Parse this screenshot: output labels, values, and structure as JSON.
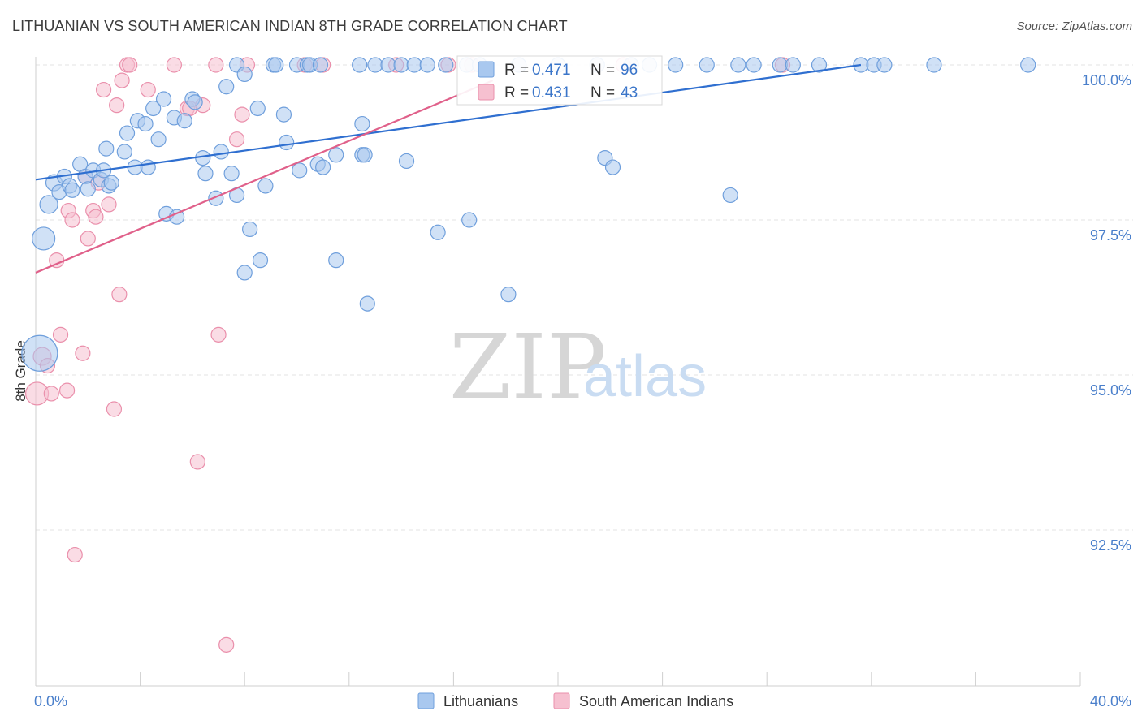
{
  "title": "LITHUANIAN VS SOUTH AMERICAN INDIAN 8TH GRADE CORRELATION CHART",
  "source": "Source: ZipAtlas.com",
  "watermark": {
    "zip": "ZIP",
    "atlas": "atlas"
  },
  "colors": {
    "blue_fill": "#a9c8ef",
    "blue_stroke": "#6f9fdc",
    "blue_line": "#2f6fd0",
    "pink_fill": "#f6c0d0",
    "pink_stroke": "#ea8fab",
    "pink_line": "#e0608a",
    "grid": "#e3e3e3",
    "tick_text": "#4a7fcb"
  },
  "legend_top": [
    {
      "r_label": "R =",
      "r_value": "0.471",
      "n_label": "N =",
      "n_value": "96",
      "series": "Lithuanians"
    },
    {
      "r_label": "R =",
      "r_value": "0.431",
      "n_label": "N =",
      "n_value": "43",
      "series": "South American Indians"
    }
  ],
  "chart_data": {
    "type": "scatter",
    "title": "LITHUANIAN VS SOUTH AMERICAN INDIAN 8TH GRADE CORRELATION CHART",
    "xlabel": "",
    "ylabel": "8th Grade",
    "xlim": [
      0,
      40
    ],
    "ylim": [
      90.2,
      100.45
    ],
    "x_tick_labels": [
      {
        "value": 0,
        "label": "0.0%"
      },
      {
        "value": 40,
        "label": "40.0%"
      }
    ],
    "x_minor_ticks": [
      4,
      8,
      12,
      16,
      20,
      24,
      28,
      32,
      36
    ],
    "y_ticks": [
      {
        "value": 100,
        "label": "100.0%"
      },
      {
        "value": 97.5,
        "label": "97.5%"
      },
      {
        "value": 95,
        "label": "95.0%"
      },
      {
        "value": 92.5,
        "label": "92.5%"
      }
    ],
    "grid": true,
    "legend_position": "bottom-center",
    "series": [
      {
        "name": "Lithuanians",
        "color": "#6f9fdc",
        "trend": {
          "x": [
            0,
            31.6
          ],
          "y": [
            98.15,
            100.0
          ]
        },
        "points": [
          [
            0.15,
            95.35,
            22
          ],
          [
            0.3,
            97.2,
            14
          ],
          [
            0.5,
            97.75,
            11
          ],
          [
            0.7,
            98.1,
            10
          ],
          [
            0.9,
            97.95,
            9
          ],
          [
            1.1,
            98.2,
            9
          ],
          [
            1.3,
            98.05,
            9
          ],
          [
            1.4,
            97.98,
            9
          ],
          [
            1.7,
            98.4,
            9
          ],
          [
            1.9,
            98.2,
            9
          ],
          [
            2.0,
            98.0,
            9
          ],
          [
            2.2,
            98.3,
            9
          ],
          [
            2.5,
            98.15,
            9
          ],
          [
            2.6,
            98.3,
            9
          ],
          [
            2.7,
            98.65,
            9
          ],
          [
            2.8,
            98.05,
            9
          ],
          [
            2.9,
            98.1,
            9
          ],
          [
            3.4,
            98.6,
            9
          ],
          [
            3.5,
            98.9,
            9
          ],
          [
            3.8,
            98.35,
            9
          ],
          [
            3.9,
            99.1,
            9
          ],
          [
            4.2,
            99.05,
            9
          ],
          [
            4.3,
            98.35,
            9
          ],
          [
            4.5,
            99.3,
            9
          ],
          [
            4.7,
            98.8,
            9
          ],
          [
            4.9,
            99.45,
            9
          ],
          [
            5.0,
            97.6,
            9
          ],
          [
            5.3,
            99.15,
            9
          ],
          [
            5.4,
            97.55,
            9
          ],
          [
            5.7,
            99.1,
            9
          ],
          [
            6.0,
            99.45,
            9
          ],
          [
            6.1,
            99.4,
            9
          ],
          [
            6.4,
            98.5,
            9
          ],
          [
            6.5,
            98.25,
            9
          ],
          [
            6.9,
            97.85,
            9
          ],
          [
            7.1,
            98.6,
            9
          ],
          [
            7.3,
            99.65,
            9
          ],
          [
            7.5,
            98.25,
            9
          ],
          [
            7.7,
            97.9,
            9
          ],
          [
            7.7,
            100.0,
            9
          ],
          [
            8.0,
            99.85,
            9
          ],
          [
            8.0,
            96.65,
            9
          ],
          [
            8.2,
            97.35,
            9
          ],
          [
            8.5,
            99.3,
            9
          ],
          [
            8.6,
            96.85,
            9
          ],
          [
            8.8,
            98.05,
            9
          ],
          [
            9.1,
            100.0,
            9
          ],
          [
            9.2,
            100.0,
            9
          ],
          [
            9.5,
            99.2,
            9
          ],
          [
            9.6,
            98.75,
            9
          ],
          [
            10.0,
            100.0,
            9
          ],
          [
            10.1,
            98.3,
            9
          ],
          [
            10.4,
            100.0,
            9
          ],
          [
            10.5,
            100.0,
            9
          ],
          [
            10.8,
            98.4,
            9
          ],
          [
            10.9,
            100.0,
            9
          ],
          [
            11.0,
            98.35,
            9
          ],
          [
            11.5,
            98.55,
            9
          ],
          [
            11.5,
            96.85,
            9
          ],
          [
            12.4,
            100.0,
            9
          ],
          [
            12.5,
            99.05,
            9
          ],
          [
            12.5,
            98.55,
            9
          ],
          [
            12.6,
            98.55,
            9
          ],
          [
            12.7,
            96.15,
            9
          ],
          [
            13.0,
            100.0,
            9
          ],
          [
            13.5,
            100.0,
            9
          ],
          [
            14.0,
            100.0,
            9
          ],
          [
            14.2,
            98.45,
            9
          ],
          [
            14.5,
            100.0,
            9
          ],
          [
            15.0,
            100.0,
            9
          ],
          [
            15.4,
            97.3,
            9
          ],
          [
            15.7,
            100.0,
            9
          ],
          [
            16.5,
            100.0,
            9
          ],
          [
            16.6,
            97.5,
            9
          ],
          [
            17.0,
            100.0,
            9
          ],
          [
            18.1,
            96.3,
            9
          ],
          [
            18.5,
            100.0,
            9
          ],
          [
            20.0,
            100.0,
            9
          ],
          [
            21.5,
            100.0,
            9
          ],
          [
            21.8,
            98.5,
            9
          ],
          [
            22.1,
            98.35,
            9
          ],
          [
            22.8,
            100.0,
            9
          ],
          [
            23.5,
            100.0,
            9
          ],
          [
            24.5,
            100.0,
            9
          ],
          [
            25.7,
            100.0,
            9
          ],
          [
            26.6,
            97.9,
            9
          ],
          [
            26.9,
            100.0,
            9
          ],
          [
            27.5,
            100.0,
            9
          ],
          [
            28.5,
            100.0,
            9
          ],
          [
            29.0,
            100.0,
            9
          ],
          [
            30.0,
            100.0,
            9
          ],
          [
            31.6,
            100.0,
            9
          ],
          [
            32.1,
            100.0,
            9
          ],
          [
            32.5,
            100.0,
            9
          ],
          [
            34.4,
            100.0,
            9
          ],
          [
            38.0,
            100.0,
            9
          ]
        ]
      },
      {
        "name": "South American Indians",
        "color": "#ea8fab",
        "trend": {
          "x": [
            0,
            17.5
          ],
          "y": [
            96.65,
            99.75
          ]
        },
        "points": [
          [
            0.05,
            94.7,
            14
          ],
          [
            0.25,
            95.3,
            11
          ],
          [
            0.45,
            95.15,
            9
          ],
          [
            0.6,
            94.7,
            9
          ],
          [
            0.8,
            96.85,
            9
          ],
          [
            0.95,
            95.65,
            9
          ],
          [
            1.2,
            94.75,
            9
          ],
          [
            1.25,
            97.65,
            9
          ],
          [
            1.4,
            97.5,
            9
          ],
          [
            1.5,
            92.1,
            9
          ],
          [
            1.8,
            95.35,
            9
          ],
          [
            1.9,
            98.2,
            9
          ],
          [
            2.0,
            97.2,
            9
          ],
          [
            2.2,
            97.65,
            9
          ],
          [
            2.3,
            97.55,
            9
          ],
          [
            2.4,
            98.1,
            9
          ],
          [
            2.6,
            99.6,
            9
          ],
          [
            2.8,
            97.75,
            9
          ],
          [
            3.0,
            94.45,
            9
          ],
          [
            3.1,
            99.35,
            9
          ],
          [
            3.2,
            96.3,
            9
          ],
          [
            3.3,
            99.75,
            9
          ],
          [
            3.5,
            100.0,
            9
          ],
          [
            3.6,
            100.0,
            9
          ],
          [
            4.3,
            99.6,
            9
          ],
          [
            5.3,
            100.0,
            9
          ],
          [
            5.8,
            99.3,
            9
          ],
          [
            5.9,
            99.3,
            9
          ],
          [
            6.2,
            93.6,
            9
          ],
          [
            6.4,
            99.35,
            9
          ],
          [
            6.9,
            100.0,
            9
          ],
          [
            7.0,
            95.65,
            9
          ],
          [
            7.3,
            90.65,
            9
          ],
          [
            7.7,
            98.8,
            9
          ],
          [
            7.9,
            99.2,
            9
          ],
          [
            8.1,
            100.0,
            9
          ],
          [
            10.3,
            100.0,
            9
          ],
          [
            11.0,
            100.0,
            9
          ],
          [
            13.8,
            100.0,
            9
          ],
          [
            15.8,
            100.0,
            9
          ],
          [
            16.7,
            100.0,
            9
          ],
          [
            22.5,
            100.0,
            9
          ],
          [
            28.6,
            100.0,
            9
          ]
        ]
      }
    ]
  }
}
